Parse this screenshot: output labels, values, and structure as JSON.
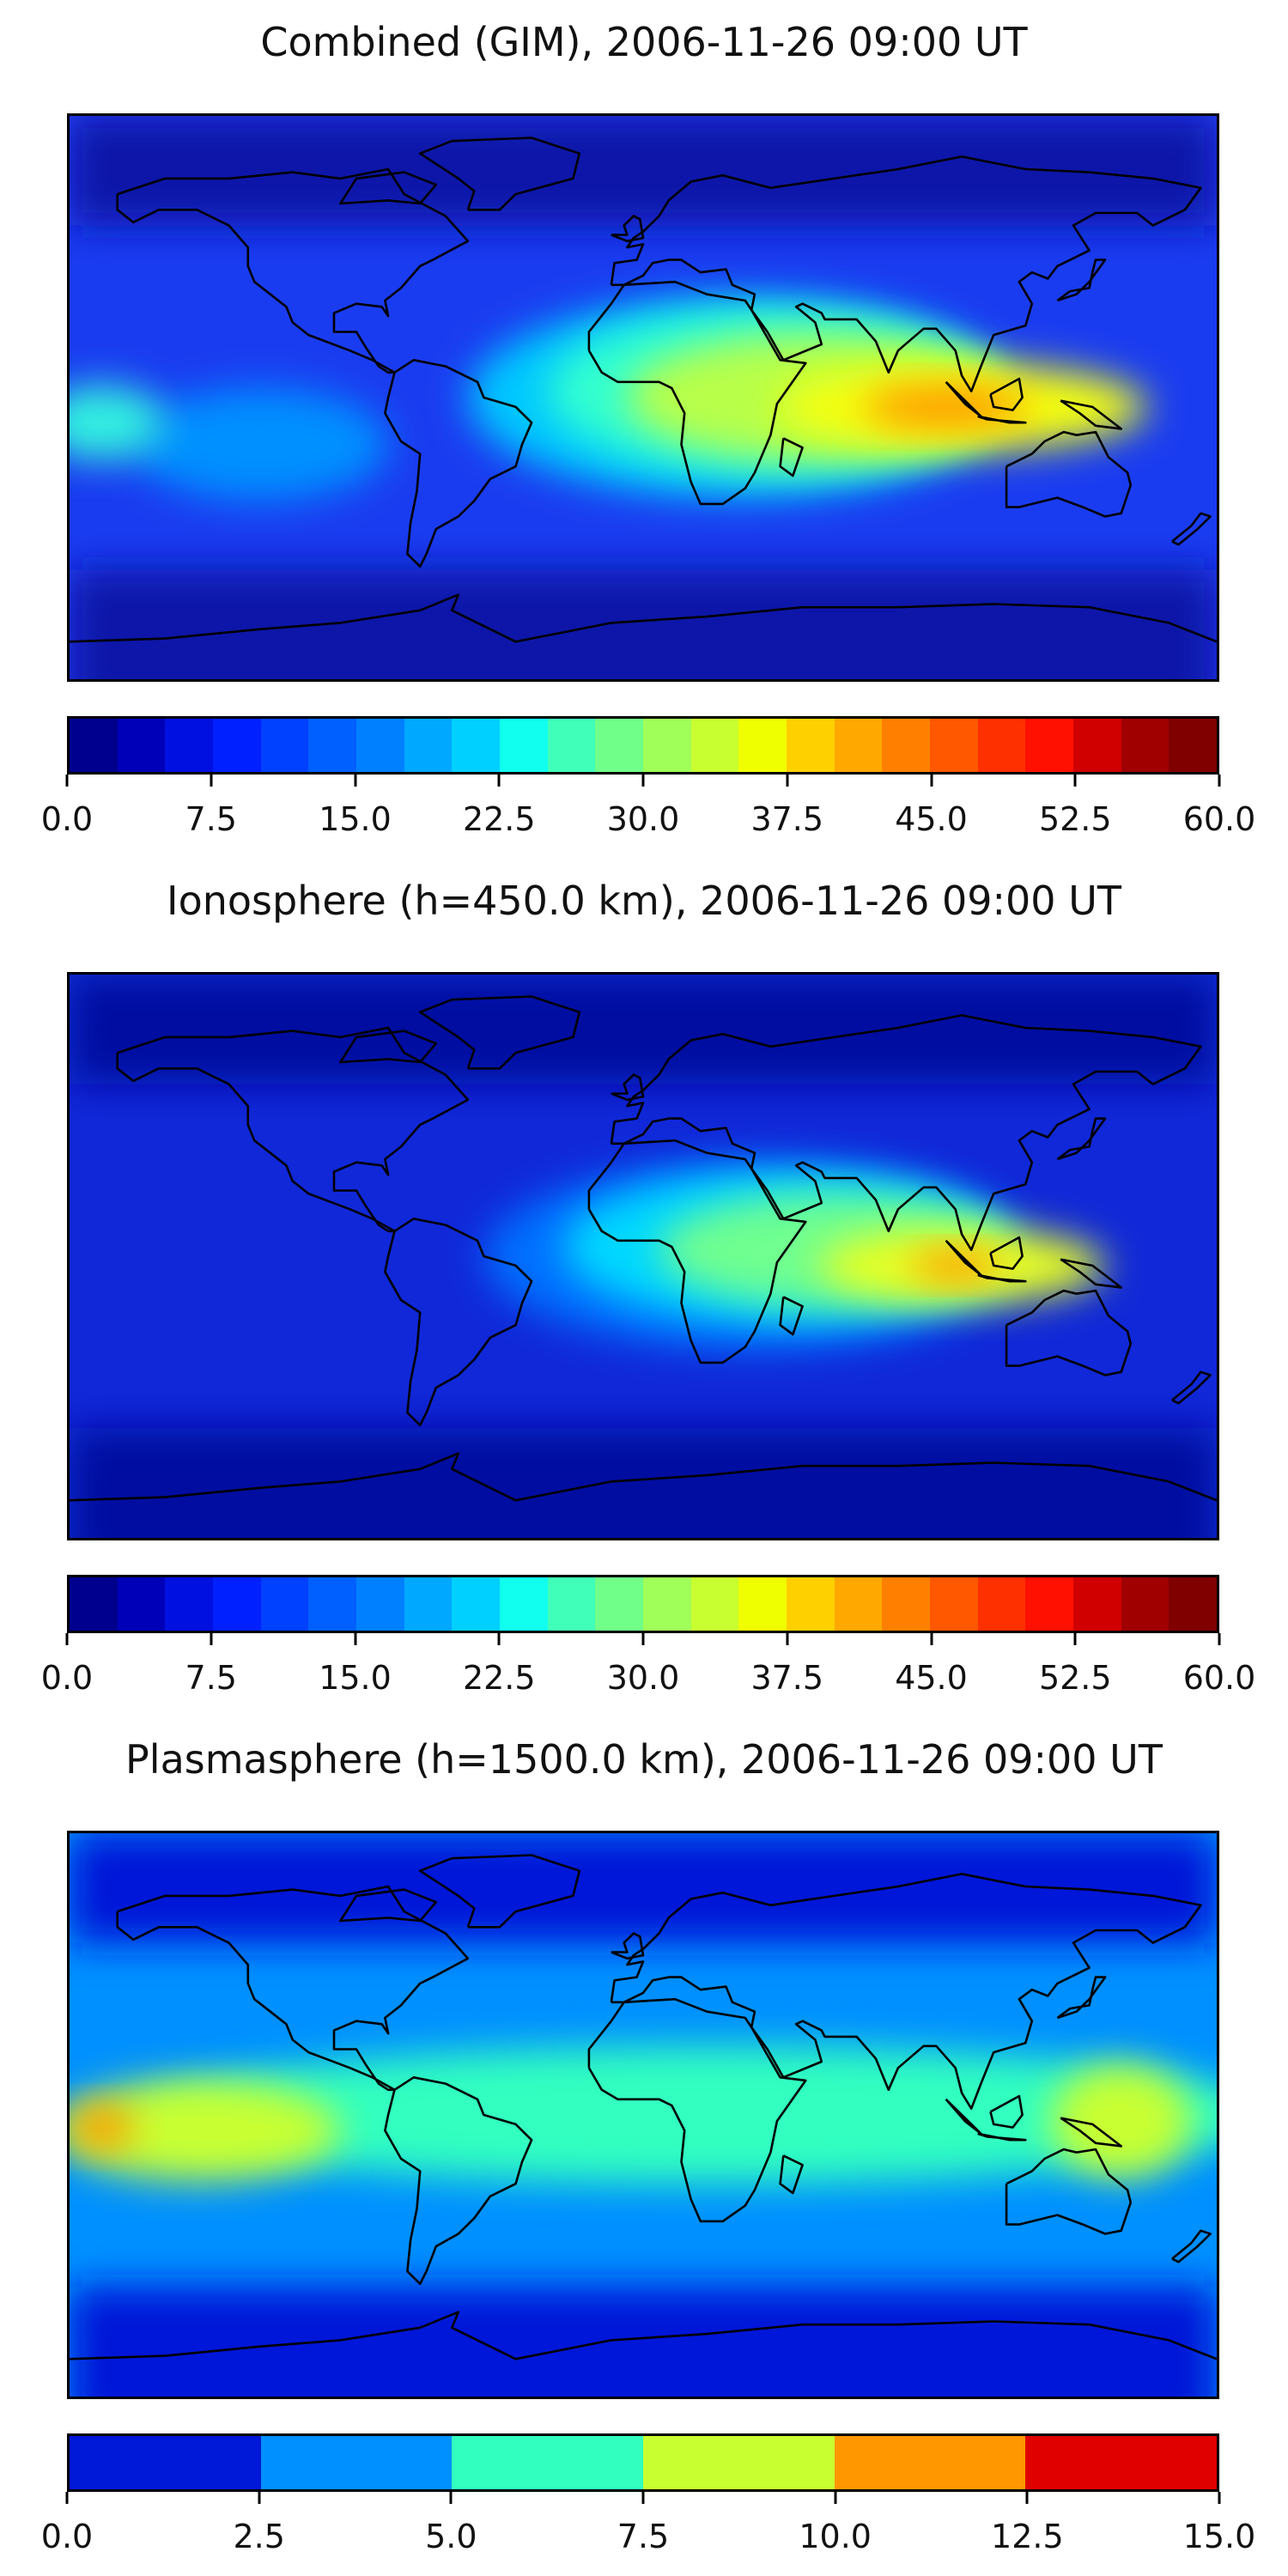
{
  "panels": [
    {
      "title": "Combined (GIM), 2006-11-26 09:00 UT",
      "colorbar": {
        "ticks": [
          "0.0",
          "7.5",
          "15.0",
          "22.5",
          "30.0",
          "37.5",
          "45.0",
          "52.5",
          "60.0"
        ],
        "min": 0,
        "max": 60,
        "colors": [
          "#00008f",
          "#0000b8",
          "#0010e0",
          "#0020ff",
          "#0040ff",
          "#0060ff",
          "#0080ff",
          "#00a8ff",
          "#00d0ff",
          "#10ffee",
          "#40ffb8",
          "#70ff88",
          "#a0ff58",
          "#c8ff30",
          "#f0ff00",
          "#ffd000",
          "#ffa800",
          "#ff8000",
          "#ff5800",
          "#ff3000",
          "#ff1000",
          "#d00000",
          "#a00000",
          "#800000"
        ]
      },
      "field": {
        "base": "#1a3cf0",
        "polar": "#0818a8",
        "blobs": [
          {
            "lon": 100,
            "lat": -3,
            "sx": 58,
            "sy": 14,
            "color": "#f5ff10"
          },
          {
            "lon": 95,
            "lat": -3,
            "sx": 26,
            "sy": 7,
            "color": "#ff9a00"
          },
          {
            "lon": 55,
            "lat": 0,
            "sx": 60,
            "sy": 20,
            "color": "#b8ff48"
          },
          {
            "lon": 40,
            "lat": 2,
            "sx": 70,
            "sy": 26,
            "color": "#30ffd0"
          },
          {
            "lon": 30,
            "lat": 0,
            "sx": 85,
            "sy": 32,
            "color": "#00c8ff"
          },
          {
            "lon": -170,
            "lat": -8,
            "sx": 20,
            "sy": 12,
            "color": "#30f0e0"
          },
          {
            "lon": -120,
            "lat": -15,
            "sx": 40,
            "sy": 18,
            "color": "#0090ff"
          }
        ]
      }
    },
    {
      "title": "Ionosphere  (h=450.0 km), 2006-11-26 09:00 UT",
      "colorbar": {
        "ticks": [
          "0.0",
          "7.5",
          "15.0",
          "22.5",
          "30.0",
          "37.5",
          "45.0",
          "52.5",
          "60.0"
        ],
        "min": 0,
        "max": 60,
        "colors": [
          "#00008f",
          "#0000b8",
          "#0010e0",
          "#0020ff",
          "#0040ff",
          "#0060ff",
          "#0080ff",
          "#00a8ff",
          "#00d0ff",
          "#10ffee",
          "#40ffb8",
          "#70ff88",
          "#a0ff58",
          "#c8ff30",
          "#f0ff00",
          "#ffd000",
          "#ffa800",
          "#ff8000",
          "#ff5800",
          "#ff3000",
          "#ff1000",
          "#d00000",
          "#a00000",
          "#800000"
        ]
      },
      "field": {
        "base": "#1028d8",
        "polar": "#0410a0",
        "blobs": [
          {
            "lon": 100,
            "lat": -3,
            "sx": 45,
            "sy": 12,
            "color": "#e8ff20"
          },
          {
            "lon": 98,
            "lat": -3,
            "sx": 14,
            "sy": 5,
            "color": "#ff9a00"
          },
          {
            "lon": 60,
            "lat": 2,
            "sx": 55,
            "sy": 18,
            "color": "#70ff90"
          },
          {
            "lon": 45,
            "lat": 3,
            "sx": 70,
            "sy": 24,
            "color": "#00d8ff"
          },
          {
            "lon": 35,
            "lat": 0,
            "sx": 85,
            "sy": 30,
            "color": "#0070ff"
          }
        ]
      }
    },
    {
      "title": "Plasmasphere (h=1500.0 km), 2006-11-26 09:00 UT",
      "colorbar": {
        "ticks": [
          "0.0",
          "2.5",
          "5.0",
          "7.5",
          "10.0",
          "12.5",
          "15.0"
        ],
        "min": 0,
        "max": 15,
        "colors": [
          "#0018d8",
          "#0090ff",
          "#30ffc0",
          "#c8ff30",
          "#ff9800",
          "#e00000"
        ]
      },
      "field": {
        "base": "#0090ff",
        "polar": "#0018d8",
        "blobs": [
          {
            "lon": -140,
            "lat": -5,
            "sx": 45,
            "sy": 16,
            "color": "#c8ff30"
          },
          {
            "lon": 150,
            "lat": -2,
            "sx": 22,
            "sy": 18,
            "color": "#c8ff30"
          },
          {
            "lon": -170,
            "lat": -4,
            "sx": 10,
            "sy": 7,
            "color": "#ff9800"
          },
          {
            "lon": 20,
            "lat": 0,
            "sx": 180,
            "sy": 22,
            "color": "#30ffc0"
          }
        ]
      }
    }
  ]
}
